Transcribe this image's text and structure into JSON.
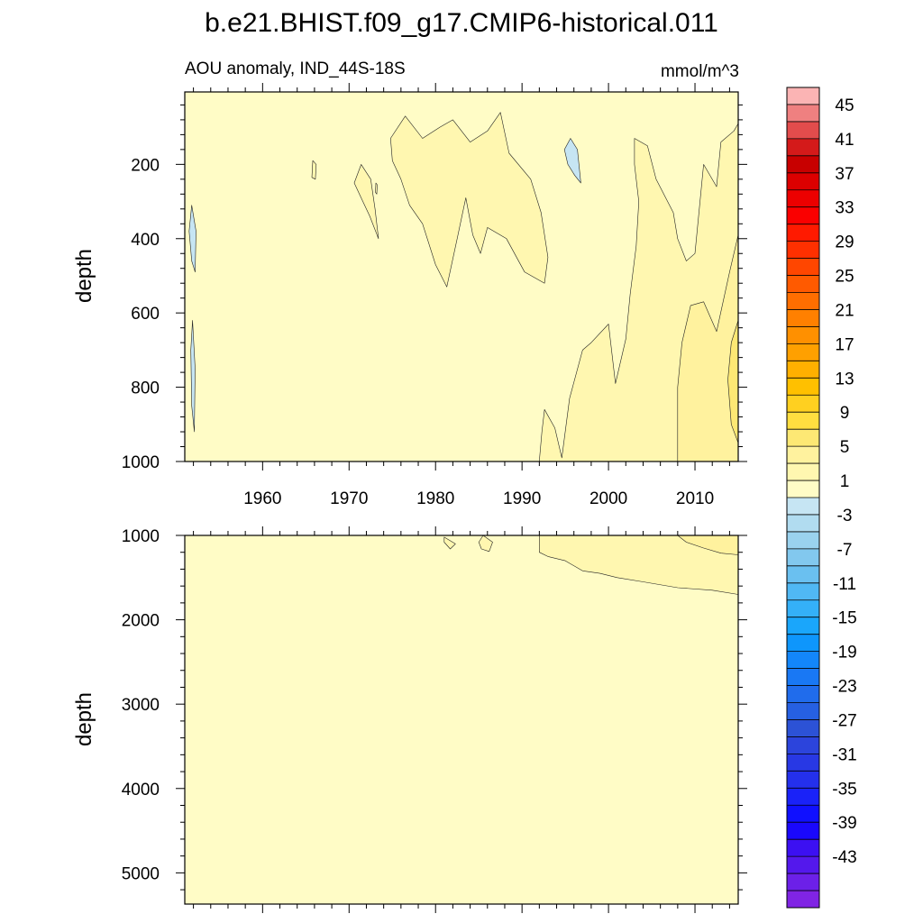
{
  "title": "b.e21.BHIST.f09_g17.CMIP6-historical.011",
  "chart_data": [
    {
      "type": "heatmap",
      "panel": "upper",
      "subtitle": "AOU anomaly, IND_44S-18S",
      "units": "mmol/m^3",
      "xlabel": "",
      "ylabel": "depth",
      "xlim": [
        1951,
        2015
      ],
      "ylim": [
        1000,
        5
      ],
      "y_reversed": true,
      "xticks": [
        "1960",
        "1970",
        "1980",
        "1990",
        "2000",
        "2010"
      ],
      "yticks": [
        "200",
        "400",
        "600",
        "800",
        "1000"
      ],
      "background_level": "-1 to 1",
      "contours": [
        {
          "fill": "#fff7b0",
          "label": "1 to 3",
          "points": [
            [
              1974.8,
              130
            ],
            [
              1976.5,
              70
            ],
            [
              1978.5,
              130
            ],
            [
              1980.5,
              100
            ],
            [
              1982,
              80
            ],
            [
              1984,
              140
            ],
            [
              1986,
              110
            ],
            [
              1987.5,
              60
            ],
            [
              1988.5,
              170
            ],
            [
              1991,
              240
            ],
            [
              1992.2,
              330
            ],
            [
              1993,
              450
            ],
            [
              1992.6,
              520
            ],
            [
              1990.3,
              490
            ],
            [
              1988.2,
              400
            ],
            [
              1986,
              370
            ],
            [
              1985.2,
              440
            ],
            [
              1984.3,
              390
            ],
            [
              1983.5,
              290
            ],
            [
              1982.5,
              400
            ],
            [
              1981.3,
              530
            ],
            [
              1980,
              470
            ],
            [
              1978.5,
              360
            ],
            [
              1977,
              310
            ],
            [
              1976,
              240
            ],
            [
              1975,
              190
            ]
          ]
        },
        {
          "fill": "#fff7b0",
          "label": "1 to 3",
          "points": [
            [
              1971.4,
              200
            ],
            [
              1972.5,
              240
            ],
            [
              1973,
              320
            ],
            [
              1973.4,
              400
            ],
            [
              1972.4,
              340
            ],
            [
              1971.6,
              300
            ],
            [
              1970.6,
              250
            ]
          ]
        },
        {
          "fill": "#fff7b0",
          "label": "1 to 3",
          "points": [
            [
              1965.8,
              190
            ],
            [
              1966.2,
              200
            ],
            [
              1966.1,
              240
            ],
            [
              1965.7,
              235
            ]
          ]
        },
        {
          "fill": "#fff7b0",
          "label": "1 to 3",
          "points": [
            [
              1973.1,
              250
            ],
            [
              1973.25,
              255
            ],
            [
              1973.2,
              280
            ],
            [
              1973.05,
              275
            ]
          ]
        },
        {
          "fill": "#fff7b0",
          "label": "1 to 3",
          "points": [
            [
              2003,
              130
            ],
            [
              2004.5,
              150
            ],
            [
              2005.5,
              240
            ],
            [
              2007.5,
              330
            ],
            [
              2008,
              400
            ],
            [
              2009,
              460
            ],
            [
              2010,
              440
            ],
            [
              2011,
              200
            ],
            [
              2012.5,
              260
            ],
            [
              2013,
              140
            ],
            [
              2014.5,
              110
            ],
            [
              2015,
              90
            ],
            [
              2015,
              1000
            ],
            [
              1992,
              1000
            ],
            [
              1992.3,
              920
            ],
            [
              1992.6,
              860
            ],
            [
              1993.8,
              910
            ],
            [
              1994.6,
              990
            ],
            [
              1995.5,
              830
            ],
            [
              1997,
              700
            ],
            [
              1998,
              680
            ],
            [
              2000,
              630
            ],
            [
              2000.8,
              790
            ],
            [
              2002,
              670
            ],
            [
              2002.5,
              550
            ],
            [
              2003.2,
              420
            ],
            [
              2003.5,
              300
            ],
            [
              2003,
              200
            ]
          ]
        },
        {
          "fill": "#fff29e",
          "label": "3 to 5",
          "points": [
            [
              2015,
              390
            ],
            [
              2014,
              490
            ],
            [
              2012.5,
              650
            ],
            [
              2011,
              570
            ],
            [
              2009.5,
              580
            ],
            [
              2008.5,
              680
            ],
            [
              2008,
              800
            ],
            [
              2008,
              1000
            ],
            [
              2015,
              1000
            ]
          ]
        },
        {
          "fill": "#fde874",
          "label": "5 to 7",
          "points": [
            [
              2015,
              620
            ],
            [
              2014.2,
              680
            ],
            [
              2013.8,
              780
            ],
            [
              2014.2,
              900
            ],
            [
              2015,
              950
            ]
          ]
        },
        {
          "fill": "#c6e5f3",
          "label": "-3 to -1",
          "points": [
            [
              1995.6,
              130
            ],
            [
              1996.4,
              160
            ],
            [
              1996.8,
              250
            ],
            [
              1996.1,
              230
            ],
            [
              1995.3,
              200
            ],
            [
              1994.9,
              160
            ]
          ]
        },
        {
          "fill": "#c6e5f3",
          "label": "-3 to -1",
          "points": [
            [
              1951.8,
              310
            ],
            [
              1952.3,
              380
            ],
            [
              1952.2,
              490
            ],
            [
              1951.8,
              460
            ],
            [
              1951.5,
              380
            ]
          ]
        },
        {
          "fill": "#c6e5f3",
          "label": "-3 to -1",
          "points": [
            [
              1951.9,
              620
            ],
            [
              1952.2,
              750
            ],
            [
              1952.1,
              920
            ],
            [
              1951.8,
              850
            ],
            [
              1951.7,
              700
            ]
          ]
        }
      ]
    },
    {
      "type": "heatmap",
      "panel": "lower",
      "xlabel": "",
      "ylabel": "depth",
      "xlim": [
        1951,
        2015
      ],
      "ylim": [
        5370,
        1000
      ],
      "y_reversed": true,
      "yticks": [
        "1000",
        "2000",
        "3000",
        "4000",
        "5000"
      ],
      "background_level": "-1 to 1",
      "contours": [
        {
          "fill": "#fff7b0",
          "label": "1 to 3",
          "points": [
            [
              1992,
              1000
            ],
            [
              2015,
              1000
            ],
            [
              2015,
              1700
            ],
            [
              2012,
              1650
            ],
            [
              2008,
              1620
            ],
            [
              2004,
              1550
            ],
            [
              2001,
              1500
            ],
            [
              1999,
              1450
            ],
            [
              1997,
              1420
            ],
            [
              1995,
              1300
            ],
            [
              1993,
              1250
            ],
            [
              1992,
              1200
            ]
          ]
        },
        {
          "fill": "#fff29e",
          "label": "3 to 5",
          "points": [
            [
              2008,
              1000
            ],
            [
              2015,
              1000
            ],
            [
              2015,
              1230
            ],
            [
              2013,
              1210
            ],
            [
              2011,
              1150
            ],
            [
              2009,
              1080
            ]
          ]
        },
        {
          "fill": "#fff7b0",
          "label": "1 to 3",
          "points": [
            [
              1981,
              1020
            ],
            [
              1982.3,
              1100
            ],
            [
              1981.7,
              1160
            ],
            [
              1981,
              1080
            ]
          ]
        },
        {
          "fill": "#fff7b0",
          "label": "1 to 3",
          "points": [
            [
              1985.5,
              1000
            ],
            [
              1986.6,
              1080
            ],
            [
              1986.2,
              1190
            ],
            [
              1985.3,
              1160
            ],
            [
              1985,
              1080
            ]
          ]
        }
      ]
    }
  ],
  "colorbar": {
    "labels": [
      "45",
      "41",
      "37",
      "33",
      "29",
      "25",
      "21",
      "17",
      "13",
      "9",
      "5",
      "1",
      "-3",
      "-7",
      "-11",
      "-15",
      "-19",
      "-23",
      "-27",
      "-31",
      "-35",
      "-39",
      "-43"
    ],
    "colors": [
      "#fbb4b4",
      "#ef8080",
      "#e24c4c",
      "#d41a1a",
      "#c80000",
      "#dc0000",
      "#ec0000",
      "#fa0000",
      "#ff1a00",
      "#ff3000",
      "#ff4600",
      "#ff5a00",
      "#ff6e00",
      "#ff8000",
      "#ff9000",
      "#ffa000",
      "#ffb000",
      "#ffc000",
      "#ffd020",
      "#ffde40",
      "#fde874",
      "#fff29e",
      "#fff7b0",
      "#fffcc6",
      "#c6e5f3",
      "#b1dcf0",
      "#9ad2ee",
      "#82c8ee",
      "#6ac0f0",
      "#50b8f4",
      "#34b0f8",
      "#1aa6fb",
      "#0e96fc",
      "#1386fa",
      "#1978f4",
      "#206cec",
      "#2660e2",
      "#2c52d6",
      "#2c44dc",
      "#2838e4",
      "#2430ec",
      "#1a22f8",
      "#1010ff",
      "#1a08fc",
      "#3c10f2",
      "#5418ec",
      "#6c20e8",
      "#8024e4"
    ]
  }
}
